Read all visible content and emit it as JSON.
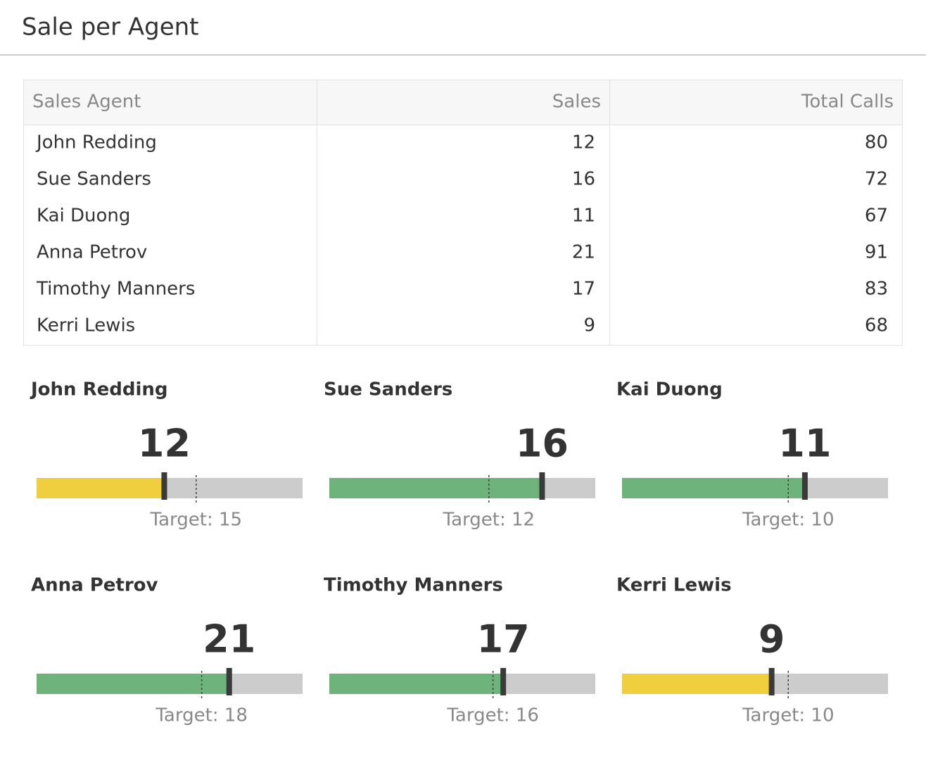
{
  "header": {
    "title": "Sale per Agent"
  },
  "table": {
    "columns": [
      "Sales Agent",
      "Sales",
      "Total Calls"
    ],
    "rows": [
      [
        "John Redding",
        12,
        80
      ],
      [
        "Sue Sanders",
        16,
        72
      ],
      [
        "Kai Duong",
        11,
        67
      ],
      [
        "Anna Petrov",
        21,
        91
      ],
      [
        "Timothy Manners",
        17,
        83
      ],
      [
        "Kerri Lewis",
        9,
        68
      ]
    ]
  },
  "gauges": [
    {
      "name": "John Redding",
      "value": 12,
      "target": {
        "value": 15,
        "label": "Target: 15"
      },
      "xlim": [
        0,
        25
      ],
      "color": "#efcf3e"
    },
    {
      "name": "Sue Sanders",
      "value": 16,
      "target": {
        "value": 12,
        "label": "Target: 12"
      },
      "xlim": [
        0,
        20
      ],
      "color": "#6db37b"
    },
    {
      "name": "Kai Duong",
      "value": 11,
      "target": {
        "value": 10,
        "label": "Target: 10"
      },
      "xlim": [
        0,
        16
      ],
      "color": "#6db37b"
    },
    {
      "name": "Anna Petrov",
      "value": 21,
      "target": {
        "value": 18,
        "label": "Target: 18"
      },
      "xlim": [
        0,
        29
      ],
      "color": "#6db37b"
    },
    {
      "name": "Timothy Manners",
      "value": 17,
      "target": {
        "value": 16,
        "label": "Target: 16"
      },
      "xlim": [
        0,
        26
      ],
      "color": "#6db37b"
    },
    {
      "name": "Kerri Lewis",
      "value": 9,
      "target": {
        "value": 10,
        "label": "Target: 10"
      },
      "xlim": [
        0,
        16
      ],
      "color": "#efcf3e"
    }
  ]
}
